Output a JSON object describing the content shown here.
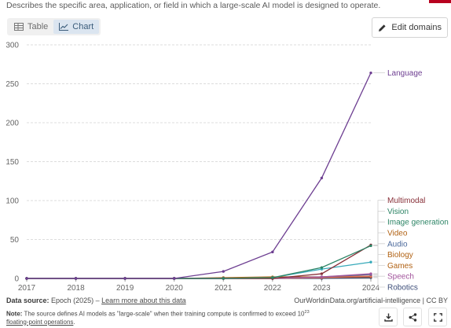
{
  "header": {
    "subtitle": "Describes the specific area, application, or field in which a large-scale AI model is designed to operate."
  },
  "tabs": [
    {
      "label": "Table",
      "icon": "table-icon",
      "active": false
    },
    {
      "label": "Chart",
      "icon": "line-chart-icon",
      "active": true
    }
  ],
  "edit_button": {
    "label": "Edit domains",
    "icon": "pencil-icon"
  },
  "colors": {
    "brand_flag": "#b8001f",
    "active_tab_bg": "#dbe5f0",
    "gridline": "#dddddd"
  },
  "chart_data": {
    "type": "line",
    "x": [
      2017,
      2018,
      2019,
      2020,
      2021,
      2022,
      2023,
      2024
    ],
    "xlim": [
      2017,
      2024
    ],
    "ylim": [
      0,
      300
    ],
    "x_ticks": [
      "2017",
      "2018",
      "2019",
      "2020",
      "2021",
      "2022",
      "2023",
      "2024"
    ],
    "y_ticks": [
      "0",
      "50",
      "100",
      "150",
      "200",
      "250",
      "300"
    ],
    "grid": true,
    "legend_placement": "right, labels at line ends",
    "series": [
      {
        "name": "Language",
        "color": "#6d3e91",
        "values": [
          0,
          0,
          0,
          0,
          9,
          34,
          129,
          264
        ]
      },
      {
        "name": "Vision",
        "color": "#2c8465",
        "values": [
          0,
          0,
          0,
          0,
          0,
          1,
          14,
          42
        ]
      },
      {
        "name": "Multimodal",
        "color": "#883039",
        "values": [
          0,
          0,
          0,
          0,
          0,
          0,
          6,
          43
        ]
      },
      {
        "name": "Video",
        "color": "#a2559c",
        "values": [
          0,
          0,
          0,
          0,
          0,
          0,
          2,
          6
        ]
      },
      {
        "name": "Image generation",
        "color": "#38aaba",
        "values": [
          0,
          0,
          0,
          0,
          0,
          1,
          12,
          21
        ]
      },
      {
        "name": "Audio",
        "color": "#4c6a9c",
        "values": [
          0,
          0,
          0,
          0,
          0,
          0,
          2,
          5
        ]
      },
      {
        "name": "Biology",
        "color": "#e56e5a",
        "values": [
          0,
          0,
          0,
          0,
          0,
          0,
          1,
          3
        ]
      },
      {
        "name": "Speech",
        "color": "#9a5129",
        "values": [
          0,
          0,
          0,
          0,
          0,
          0,
          1,
          2
        ]
      },
      {
        "name": "Games",
        "color": "#b16214",
        "values": [
          0,
          0,
          0,
          0,
          1,
          2,
          2,
          3
        ]
      },
      {
        "name": "Robotics",
        "color": "#3f4f7a",
        "values": [
          0,
          0,
          0,
          0,
          0,
          0,
          0,
          1
        ]
      }
    ],
    "legend_label_colors": {
      "Language": "#6d3e91",
      "Vision": "#2c8465",
      "Multimodal": "#883039",
      "Video": "#b16214",
      "Image generation": "#2c8465",
      "Audio": "#4c6a9c",
      "Biology": "#b16214",
      "Speech": "#a2559c",
      "Games": "#b16214",
      "Robotics": "#3f4f7a"
    }
  },
  "footer": {
    "source_label": "Data source:",
    "source_text": "Epoch (2025) –",
    "learn_more": "Learn more about this data",
    "credit": "OurWorldinData.org/artificial-intelligence | CC BY",
    "note_label": "Note:",
    "note_text": "The source defines AI models as \"large-scale\" when their training compute is confirmed to exceed 10",
    "note_exponent": "23",
    "note_link": "floating-point operations",
    "note_end": "."
  },
  "action_buttons": [
    {
      "name": "download-button",
      "icon": "download-icon"
    },
    {
      "name": "share-button",
      "icon": "share-icon"
    },
    {
      "name": "fullscreen-button",
      "icon": "fullscreen-icon"
    }
  ]
}
